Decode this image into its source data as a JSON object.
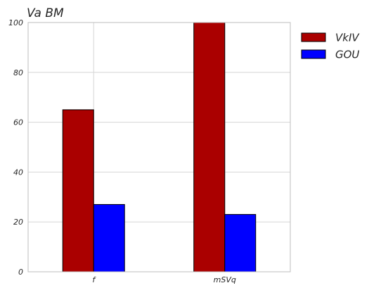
{
  "chart_data": {
    "type": "bar",
    "title": "Va BM",
    "xlabel": "",
    "ylabel": "",
    "categories": [
      "f",
      "mSVq"
    ],
    "series": [
      {
        "name": "VkIV",
        "values": [
          65,
          100
        ],
        "color": "#aa0000"
      },
      {
        "name": "GOU",
        "values": [
          27,
          23
        ],
        "color": "#0000ff"
      }
    ],
    "ylim": [
      0,
      100
    ],
    "yticks": [
      0,
      20,
      40,
      60,
      80,
      100
    ],
    "grid": true,
    "legend_position": "outside-right-top"
  }
}
